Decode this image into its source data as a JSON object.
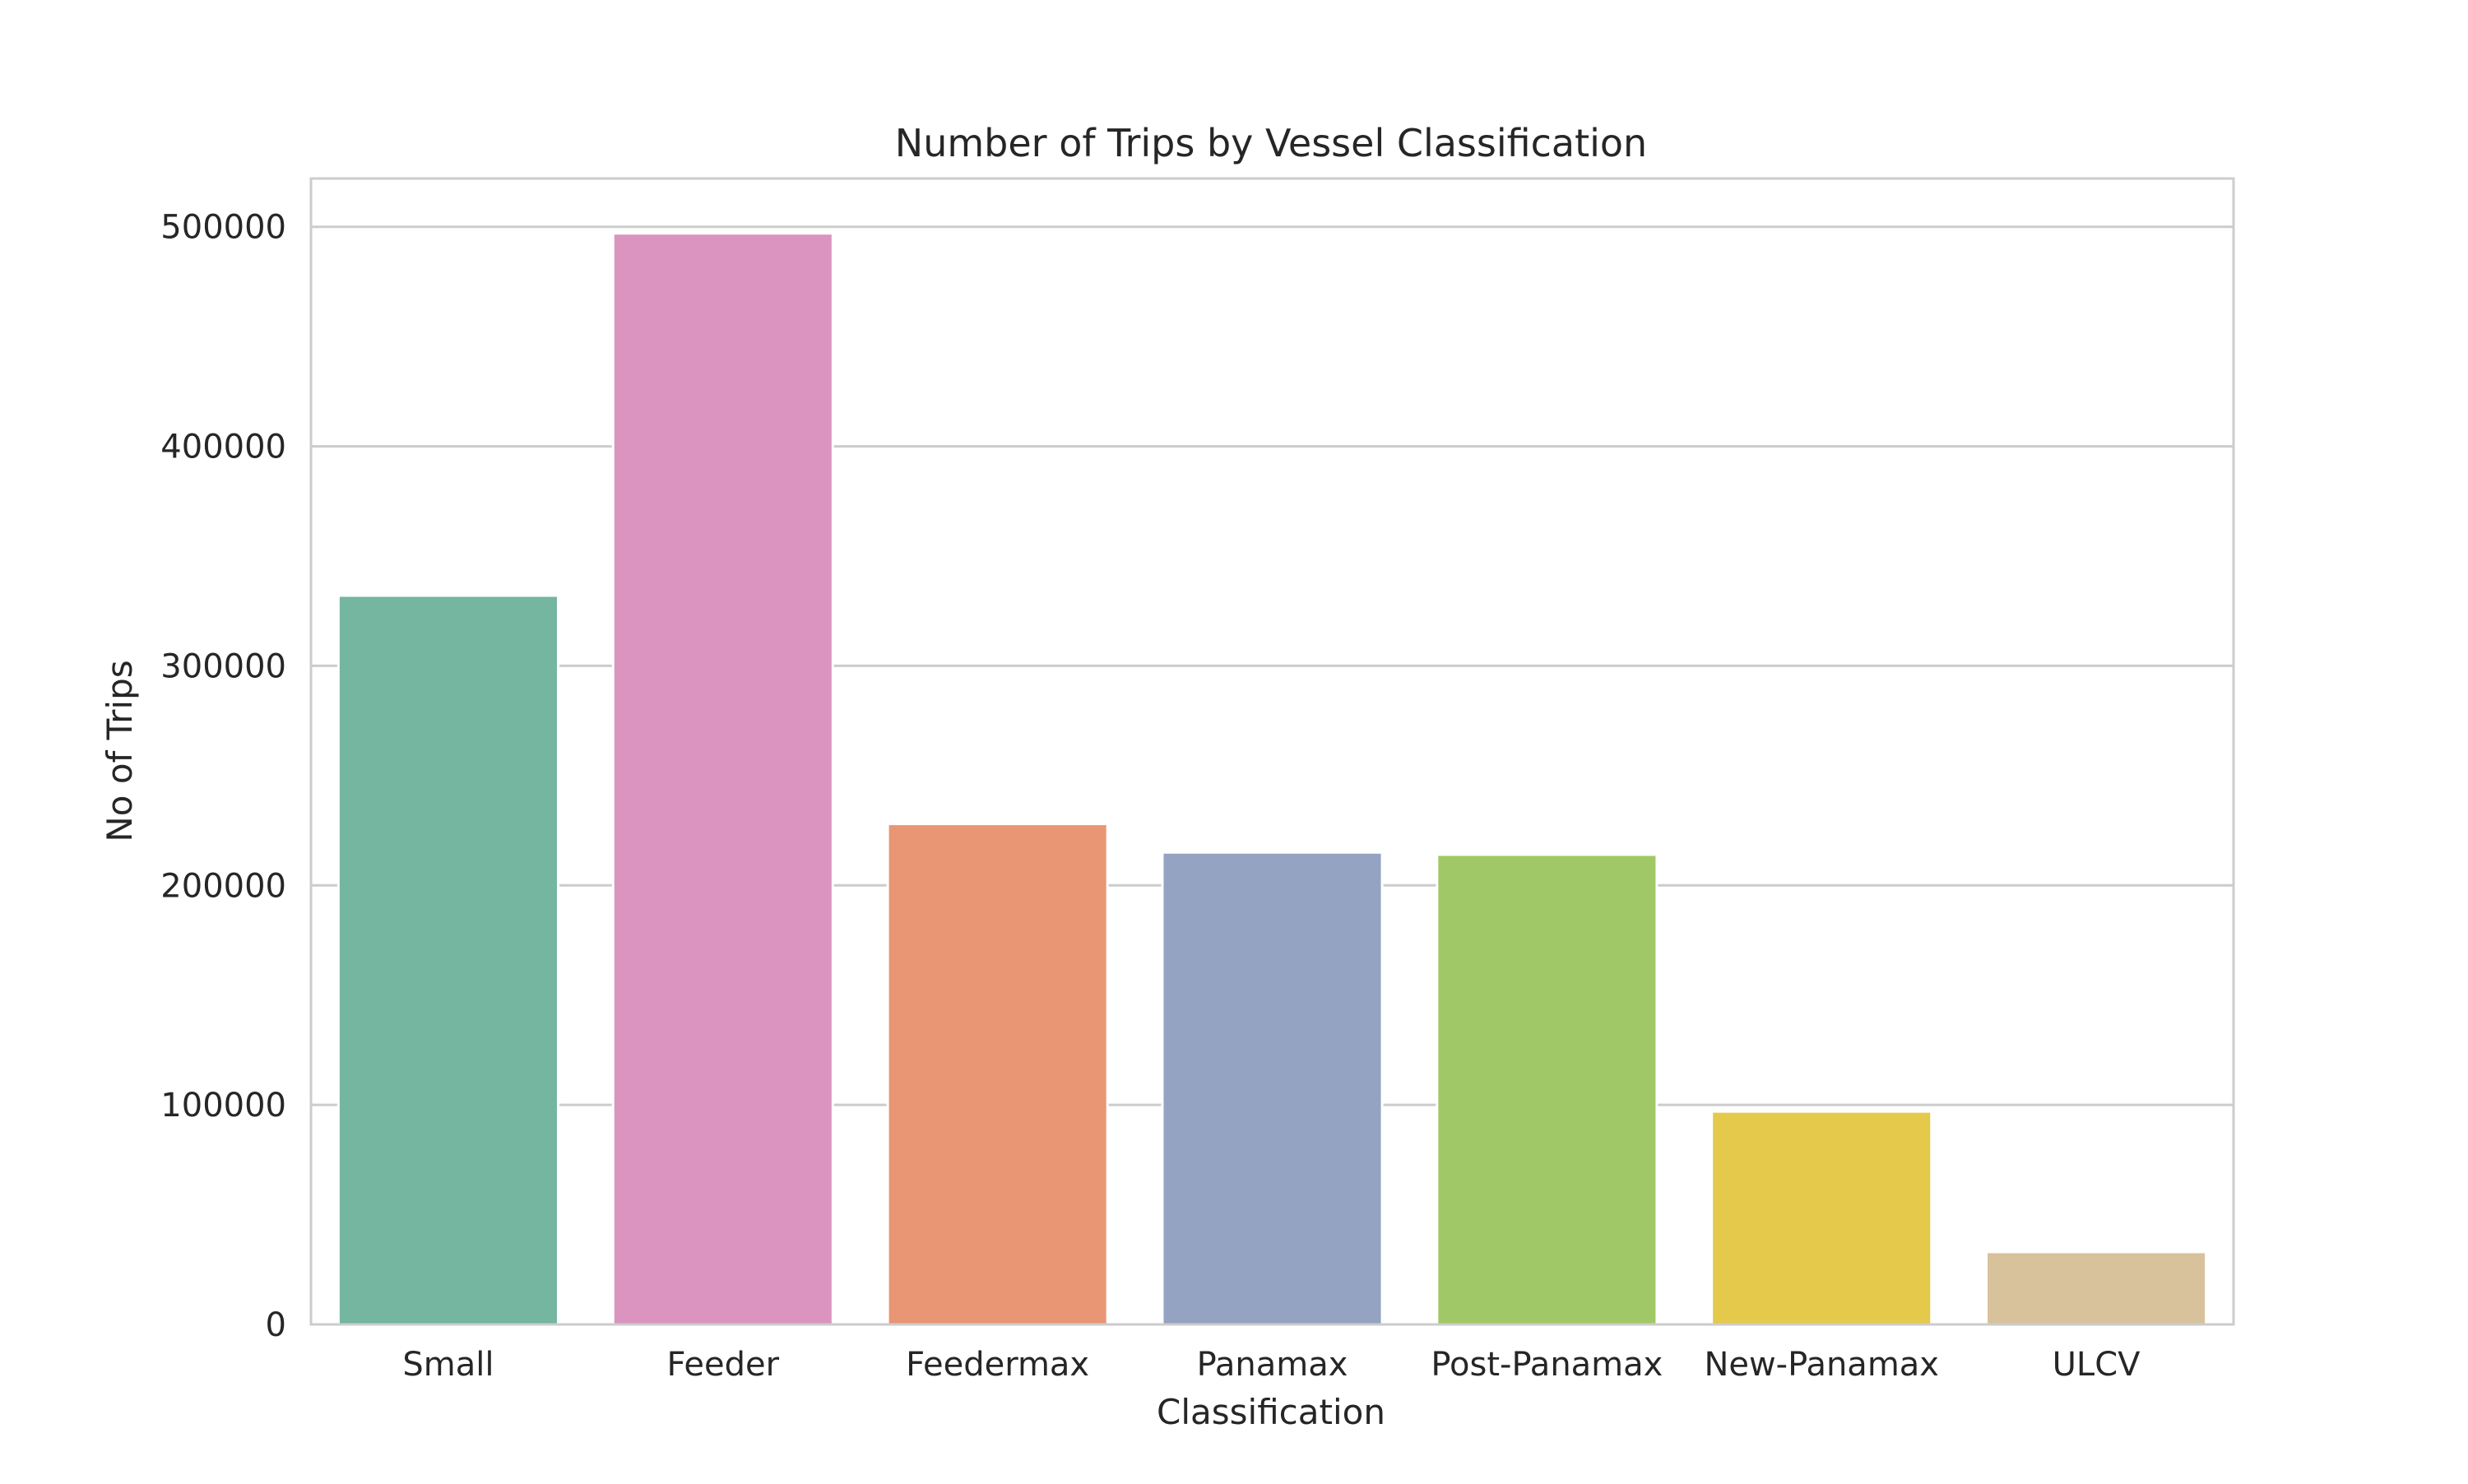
{
  "chart_data": {
    "type": "bar",
    "title": "Number of Trips by Vessel Classification",
    "xlabel": "Classification",
    "ylabel": "No of Trips",
    "categories": [
      "Small",
      "Feeder",
      "Feedermax",
      "Panamax",
      "Post-Panamax",
      "New-Panamax",
      "ULCV"
    ],
    "values": [
      332000,
      497000,
      228000,
      215000,
      214000,
      97000,
      33000
    ],
    "colors": [
      "#74b6a0",
      "#da94bf",
      "#e99674",
      "#94a3c2",
      "#a1c866",
      "#e4c94b",
      "#d8c29b"
    ],
    "yticks": [
      "0",
      "100000",
      "200000",
      "300000",
      "400000",
      "500000"
    ],
    "ylim": [
      0,
      522000
    ],
    "grid": true,
    "legend": "none"
  }
}
